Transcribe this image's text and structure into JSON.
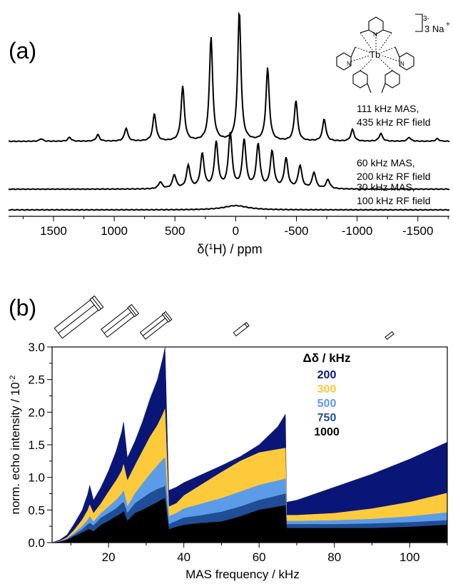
{
  "figure": {
    "panel_a_label": "(a)",
    "panel_b_label": "(b)"
  },
  "structure": {
    "central_atom": "Tb",
    "charge": "3-",
    "counter_ion": "3 Na",
    "counter_ion_charge": "+",
    "n_label": "N"
  },
  "colors": {
    "navy": "#0a1677",
    "yellow": "#fdca3c",
    "light_blue": "#5c9be8",
    "mid_blue": "#1f4e96",
    "black": "#000000"
  },
  "chart_data": [
    {
      "type": "line",
      "panel": "a",
      "xlabel_prefix": "δ(",
      "xlabel_sup": "1",
      "xlabel_suffix": "H) / ppm",
      "xlim": [
        1870,
        -1760
      ],
      "x_reversed": true,
      "x_ticks": [
        1500,
        1000,
        500,
        0,
        -500,
        -1000,
        -1500
      ],
      "x_tick_labels": [
        "1500",
        "1000",
        "500",
        "0",
        "-500",
        "-1000",
        "-1500"
      ],
      "series": [
        {
          "label_line1": "111 kHz MAS,",
          "label_line2": "435 kHz RF field",
          "spacing_ppm": 233,
          "center_ppm": -30,
          "sidebands": [
            {
              "order": -7,
              "height": 0.02
            },
            {
              "order": -6,
              "height": 0.03
            },
            {
              "order": -5,
              "height": 0.06
            },
            {
              "order": -4,
              "height": 0.09
            },
            {
              "order": -3,
              "height": 0.17
            },
            {
              "order": -2,
              "height": 0.31
            },
            {
              "order": -1,
              "height": 0.56
            },
            {
              "order": 0,
              "height": 1.0
            },
            {
              "order": 1,
              "height": 0.8
            },
            {
              "order": 2,
              "height": 0.42
            },
            {
              "order": 3,
              "height": 0.21
            },
            {
              "order": 4,
              "height": 0.1
            },
            {
              "order": 5,
              "height": 0.05
            },
            {
              "order": 6,
              "height": 0.03
            },
            {
              "order": 7,
              "height": 0.02
            }
          ]
        },
        {
          "label_line1": "60 kHz MAS,",
          "label_line2": "200 kHz RF field",
          "spacing_ppm": 115,
          "center_ppm": -70,
          "sidebands": [
            {
              "order": -6,
              "height": 0.04
            },
            {
              "order": -5,
              "height": 0.07
            },
            {
              "order": -4,
              "height": 0.1
            },
            {
              "order": -3,
              "height": 0.13
            },
            {
              "order": -2,
              "height": 0.16
            },
            {
              "order": -1,
              "height": 0.19
            },
            {
              "order": 0,
              "height": 0.21
            },
            {
              "order": 1,
              "height": 0.24
            },
            {
              "order": 2,
              "height": 0.2
            },
            {
              "order": 3,
              "height": 0.15
            },
            {
              "order": 4,
              "height": 0.1
            },
            {
              "order": 5,
              "height": 0.06
            },
            {
              "order": 6,
              "height": 0.03
            }
          ]
        },
        {
          "label_line1": "30 kHz MAS,",
          "label_line2": "100 kHz RF field",
          "spacing_ppm": 58,
          "center_ppm": 0,
          "sidebands": [
            {
              "order": 0,
              "height": 0.02
            }
          ]
        }
      ]
    },
    {
      "type": "area",
      "panel": "b",
      "xlabel": "MAS frequency / kHz",
      "ylabel_main": "norm. echo intensity / 10",
      "ylabel_exp": "-2",
      "xlim": [
        5,
        110
      ],
      "ylim": [
        0,
        3.0
      ],
      "x_ticks": [
        20,
        40,
        60,
        80,
        100
      ],
      "x_tick_labels": [
        "20",
        "40",
        "60",
        "80",
        "100"
      ],
      "y_ticks": [
        0.0,
        0.5,
        1.0,
        1.5,
        2.0,
        2.5,
        3.0
      ],
      "y_tick_labels": [
        "0.0",
        "0.5",
        "1.0",
        "1.5",
        "2.0",
        "2.5",
        "3.0"
      ],
      "legend_title": "Δδ / kHz",
      "legend_position": "top-right",
      "series": [
        {
          "name": "200",
          "color": "#0a1677",
          "points": [
            [
              5,
              0
            ],
            [
              7,
              0.04
            ],
            [
              9,
              0.12
            ],
            [
              11,
              0.3
            ],
            [
              13,
              0.5
            ],
            [
              14.5,
              0.75
            ],
            [
              15,
              0.88
            ],
            [
              16,
              0.65
            ],
            [
              18,
              0.85
            ],
            [
              20,
              1.1
            ],
            [
              22,
              1.4
            ],
            [
              23.5,
              1.7
            ],
            [
              24,
              1.85
            ],
            [
              25,
              1.3
            ],
            [
              27,
              1.55
            ],
            [
              29,
              1.85
            ],
            [
              31,
              2.2
            ],
            [
              33,
              2.5
            ],
            [
              34.5,
              2.85
            ],
            [
              35,
              3.0
            ],
            [
              36,
              0.8
            ],
            [
              38,
              0.85
            ],
            [
              40,
              0.92
            ],
            [
              45,
              1.05
            ],
            [
              50,
              1.18
            ],
            [
              55,
              1.32
            ],
            [
              60,
              1.5
            ],
            [
              65,
              1.78
            ],
            [
              67,
              1.97
            ],
            [
              67.3,
              0.62
            ],
            [
              70,
              0.65
            ],
            [
              80,
              0.85
            ],
            [
              90,
              1.05
            ],
            [
              100,
              1.28
            ],
            [
              110,
              1.54
            ]
          ]
        },
        {
          "name": "300",
          "color": "#fdca3c",
          "points": [
            [
              5,
              0
            ],
            [
              7,
              0.02
            ],
            [
              9,
              0.08
            ],
            [
              11,
              0.2
            ],
            [
              13,
              0.35
            ],
            [
              14.5,
              0.5
            ],
            [
              15,
              0.58
            ],
            [
              16,
              0.45
            ],
            [
              18,
              0.6
            ],
            [
              20,
              0.78
            ],
            [
              22,
              0.95
            ],
            [
              23.5,
              1.1
            ],
            [
              24,
              1.2
            ],
            [
              25,
              0.95
            ],
            [
              27,
              1.18
            ],
            [
              29,
              1.4
            ],
            [
              31,
              1.62
            ],
            [
              33,
              1.8
            ],
            [
              34.5,
              1.98
            ],
            [
              35,
              2.05
            ],
            [
              36,
              0.55
            ],
            [
              38,
              0.6
            ],
            [
              40,
              0.72
            ],
            [
              45,
              0.9
            ],
            [
              50,
              1.08
            ],
            [
              55,
              1.25
            ],
            [
              60,
              1.38
            ],
            [
              65,
              1.43
            ],
            [
              67,
              1.45
            ],
            [
              67.3,
              0.42
            ],
            [
              70,
              0.42
            ],
            [
              80,
              0.45
            ],
            [
              90,
              0.52
            ],
            [
              100,
              0.62
            ],
            [
              110,
              0.76
            ]
          ]
        },
        {
          "name": "500",
          "color": "#5c9be8",
          "points": [
            [
              5,
              0
            ],
            [
              7,
              0.02
            ],
            [
              9,
              0.06
            ],
            [
              11,
              0.15
            ],
            [
              13,
              0.25
            ],
            [
              14.5,
              0.35
            ],
            [
              15,
              0.4
            ],
            [
              16,
              0.32
            ],
            [
              18,
              0.45
            ],
            [
              20,
              0.55
            ],
            [
              22,
              0.65
            ],
            [
              23.5,
              0.75
            ],
            [
              24,
              0.8
            ],
            [
              25,
              0.55
            ],
            [
              27,
              0.75
            ],
            [
              29,
              0.9
            ],
            [
              31,
              1.05
            ],
            [
              33,
              1.18
            ],
            [
              34.5,
              1.28
            ],
            [
              35,
              1.3
            ],
            [
              36,
              0.4
            ],
            [
              38,
              0.45
            ],
            [
              40,
              0.52
            ],
            [
              45,
              0.6
            ],
            [
              50,
              0.68
            ],
            [
              55,
              0.78
            ],
            [
              60,
              0.88
            ],
            [
              65,
              0.95
            ],
            [
              67,
              0.98
            ],
            [
              67.3,
              0.33
            ],
            [
              70,
              0.33
            ],
            [
              80,
              0.34
            ],
            [
              90,
              0.36
            ],
            [
              100,
              0.4
            ],
            [
              110,
              0.46
            ]
          ]
        },
        {
          "name": "750",
          "color": "#1f4e96",
          "points": [
            [
              5,
              0
            ],
            [
              7,
              0.01
            ],
            [
              9,
              0.05
            ],
            [
              11,
              0.12
            ],
            [
              13,
              0.2
            ],
            [
              14.5,
              0.28
            ],
            [
              15,
              0.3
            ],
            [
              16,
              0.26
            ],
            [
              18,
              0.38
            ],
            [
              20,
              0.45
            ],
            [
              22,
              0.52
            ],
            [
              23.5,
              0.6
            ],
            [
              24,
              0.62
            ],
            [
              25,
              0.45
            ],
            [
              27,
              0.6
            ],
            [
              29,
              0.68
            ],
            [
              31,
              0.76
            ],
            [
              33,
              0.82
            ],
            [
              34.5,
              0.85
            ],
            [
              35,
              0.87
            ],
            [
              36,
              0.28
            ],
            [
              38,
              0.33
            ],
            [
              40,
              0.38
            ],
            [
              45,
              0.42
            ],
            [
              50,
              0.47
            ],
            [
              55,
              0.55
            ],
            [
              60,
              0.65
            ],
            [
              65,
              0.72
            ],
            [
              67,
              0.75
            ],
            [
              67.3,
              0.28
            ],
            [
              70,
              0.28
            ],
            [
              80,
              0.28
            ],
            [
              90,
              0.29
            ],
            [
              100,
              0.31
            ],
            [
              110,
              0.34
            ]
          ]
        },
        {
          "name": "1000",
          "color": "#000000",
          "points": [
            [
              5,
              0
            ],
            [
              7,
              0.01
            ],
            [
              9,
              0.04
            ],
            [
              11,
              0.1
            ],
            [
              13,
              0.15
            ],
            [
              14.5,
              0.2
            ],
            [
              15,
              0.2
            ],
            [
              16,
              0.17
            ],
            [
              18,
              0.27
            ],
            [
              20,
              0.33
            ],
            [
              22,
              0.4
            ],
            [
              23.5,
              0.45
            ],
            [
              24,
              0.48
            ],
            [
              25,
              0.33
            ],
            [
              27,
              0.45
            ],
            [
              29,
              0.5
            ],
            [
              31,
              0.56
            ],
            [
              33,
              0.62
            ],
            [
              34.5,
              0.67
            ],
            [
              35,
              0.67
            ],
            [
              36,
              0.2
            ],
            [
              38,
              0.24
            ],
            [
              40,
              0.27
            ],
            [
              45,
              0.3
            ],
            [
              50,
              0.32
            ],
            [
              55,
              0.4
            ],
            [
              60,
              0.5
            ],
            [
              65,
              0.55
            ],
            [
              67,
              0.57
            ],
            [
              67.3,
              0.22
            ],
            [
              70,
              0.22
            ],
            [
              80,
              0.22
            ],
            [
              90,
              0.22
            ],
            [
              100,
              0.24
            ],
            [
              110,
              0.27
            ]
          ]
        }
      ]
    }
  ]
}
